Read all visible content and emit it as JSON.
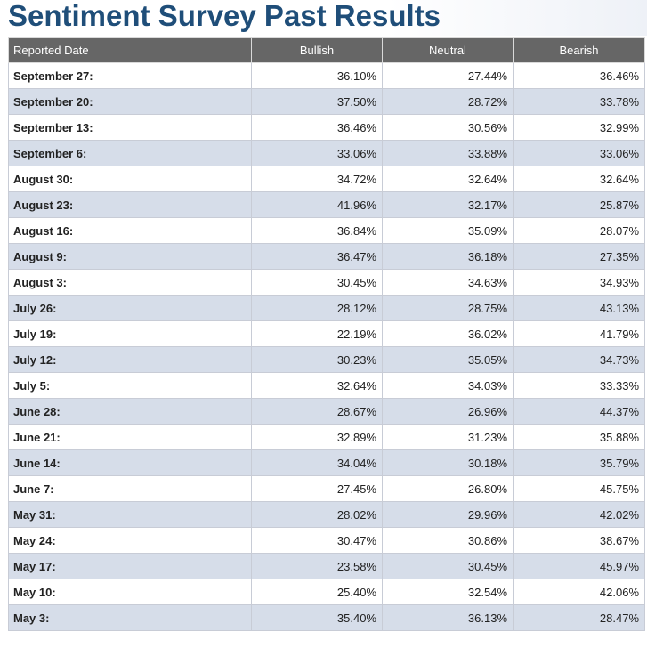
{
  "page": {
    "title": "Sentiment Survey Past Results"
  },
  "table": {
    "headers": [
      "Reported Date",
      "Bullish",
      "Neutral",
      "Bearish"
    ],
    "rows": [
      {
        "date": "September 27:",
        "bullish": "36.10%",
        "neutral": "27.44%",
        "bearish": "36.46%"
      },
      {
        "date": "September 20:",
        "bullish": "37.50%",
        "neutral": "28.72%",
        "bearish": "33.78%"
      },
      {
        "date": "September 13:",
        "bullish": "36.46%",
        "neutral": "30.56%",
        "bearish": "32.99%"
      },
      {
        "date": "September 6:",
        "bullish": "33.06%",
        "neutral": "33.88%",
        "bearish": "33.06%"
      },
      {
        "date": "August 30:",
        "bullish": "34.72%",
        "neutral": "32.64%",
        "bearish": "32.64%"
      },
      {
        "date": "August 23:",
        "bullish": "41.96%",
        "neutral": "32.17%",
        "bearish": "25.87%"
      },
      {
        "date": "August 16:",
        "bullish": "36.84%",
        "neutral": "35.09%",
        "bearish": "28.07%"
      },
      {
        "date": "August 9:",
        "bullish": "36.47%",
        "neutral": "36.18%",
        "bearish": "27.35%"
      },
      {
        "date": "August 3:",
        "bullish": "30.45%",
        "neutral": "34.63%",
        "bearish": "34.93%"
      },
      {
        "date": "July 26:",
        "bullish": "28.12%",
        "neutral": "28.75%",
        "bearish": "43.13%"
      },
      {
        "date": "July 19:",
        "bullish": "22.19%",
        "neutral": "36.02%",
        "bearish": "41.79%"
      },
      {
        "date": "July 12:",
        "bullish": "30.23%",
        "neutral": "35.05%",
        "bearish": "34.73%"
      },
      {
        "date": "July 5:",
        "bullish": "32.64%",
        "neutral": "34.03%",
        "bearish": "33.33%"
      },
      {
        "date": "June 28:",
        "bullish": "28.67%",
        "neutral": "26.96%",
        "bearish": "44.37%"
      },
      {
        "date": "June 21:",
        "bullish": "32.89%",
        "neutral": "31.23%",
        "bearish": "35.88%"
      },
      {
        "date": "June 14:",
        "bullish": "34.04%",
        "neutral": "30.18%",
        "bearish": "35.79%"
      },
      {
        "date": "June 7:",
        "bullish": "27.45%",
        "neutral": "26.80%",
        "bearish": "45.75%"
      },
      {
        "date": "May 31:",
        "bullish": "28.02%",
        "neutral": "29.96%",
        "bearish": "42.02%"
      },
      {
        "date": "May 24:",
        "bullish": "30.47%",
        "neutral": "30.86%",
        "bearish": "38.67%"
      },
      {
        "date": "May 17:",
        "bullish": "23.58%",
        "neutral": "30.45%",
        "bearish": "45.97%"
      },
      {
        "date": "May 10:",
        "bullish": "25.40%",
        "neutral": "32.54%",
        "bearish": "42.06%"
      },
      {
        "date": "May 3:",
        "bullish": "35.40%",
        "neutral": "36.13%",
        "bearish": "28.47%"
      }
    ]
  },
  "colors": {
    "title": "#1f4e79",
    "header_bg": "#666666",
    "row_alt_bg": "#d6dde9"
  }
}
